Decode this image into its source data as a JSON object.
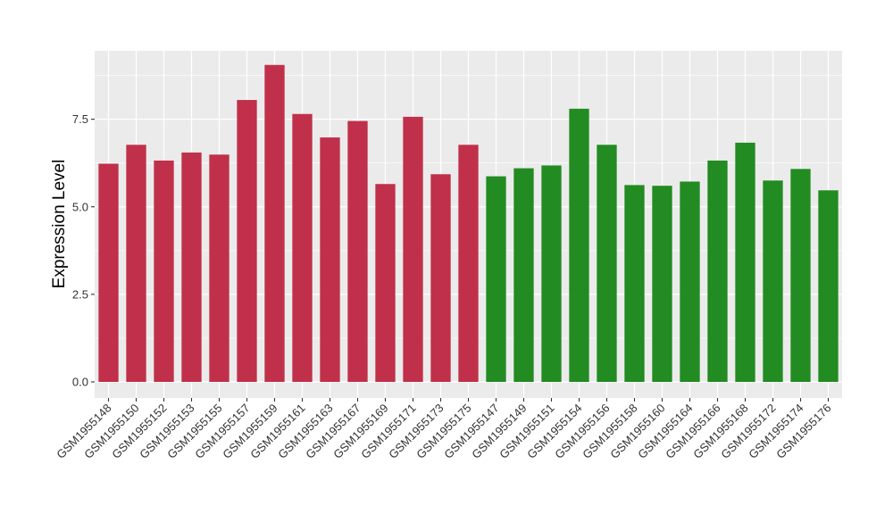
{
  "chart_data": {
    "type": "bar",
    "title": "",
    "xlabel": "",
    "ylabel": "Expression Level",
    "ylim": [
      0,
      9.3
    ],
    "yticks": [
      0.0,
      2.5,
      5.0,
      7.5
    ],
    "ytick_labels": [
      "0.0",
      "2.5",
      "5.0",
      "7.5"
    ],
    "grid": true,
    "legend": "none",
    "categories": [
      "GSM1955148",
      "GSM1955150",
      "GSM1955152",
      "GSM1955153",
      "GSM1955155",
      "GSM1955157",
      "GSM1955159",
      "GSM1955161",
      "GSM1955163",
      "GSM1955167",
      "GSM1955169",
      "GSM1955171",
      "GSM1955173",
      "GSM1955175",
      "GSM1955147",
      "GSM1955149",
      "GSM1955151",
      "GSM1955154",
      "GSM1955156",
      "GSM1955158",
      "GSM1955160",
      "GSM1955164",
      "GSM1955166",
      "GSM1955168",
      "GSM1955172",
      "GSM1955174",
      "GSM1955176"
    ],
    "values": [
      6.23,
      6.77,
      6.32,
      6.55,
      6.49,
      8.05,
      9.05,
      7.65,
      6.98,
      7.45,
      5.65,
      7.57,
      5.93,
      6.77,
      5.87,
      6.1,
      6.18,
      7.8,
      6.77,
      5.62,
      5.6,
      5.72,
      6.32,
      6.83,
      5.75,
      6.08,
      5.47
    ],
    "bar_colors": [
      "#C0304A",
      "#C0304A",
      "#C0304A",
      "#C0304A",
      "#C0304A",
      "#C0304A",
      "#C0304A",
      "#C0304A",
      "#C0304A",
      "#C0304A",
      "#C0304A",
      "#C0304A",
      "#C0304A",
      "#C0304A",
      "#228B22",
      "#228B22",
      "#228B22",
      "#228B22",
      "#228B22",
      "#228B22",
      "#228B22",
      "#228B22",
      "#228B22",
      "#228B22",
      "#228B22",
      "#228B22",
      "#228B22"
    ],
    "panel_background": "#EBEBEB",
    "grid_color": "#FFFFFF"
  }
}
